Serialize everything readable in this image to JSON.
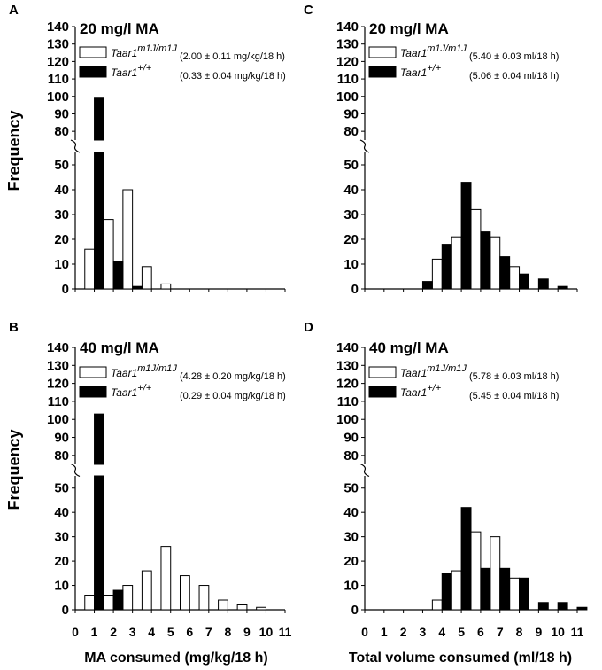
{
  "figure": {
    "y_axis_label": "Frequency",
    "x_label_left": "MA consumed (mg/kg/18 h)",
    "x_label_right": "Total volume consumed (ml/18 h)",
    "colors": {
      "ko": "#ffffff",
      "wt": "#000000",
      "axis": "#000000"
    }
  },
  "chart_data": [
    {
      "panel": "A",
      "type": "bar",
      "title": "20 mg/l MA",
      "xlabel": "MA consumed (mg/kg/18 h)",
      "ylabel": "Frequency",
      "xlim": [
        0,
        11
      ],
      "ylim": [
        0,
        140
      ],
      "y_break": [
        55,
        75
      ],
      "y_ticks": [
        0,
        10,
        20,
        30,
        40,
        50,
        80,
        90,
        100,
        110,
        120,
        130,
        140
      ],
      "legend": [
        {
          "gene": "Taar1",
          "sup": "m1J/m1J",
          "stat": "(2.00 ± 0.11 mg/kg/18 h)"
        },
        {
          "gene": "Taar1",
          "sup": "+/+",
          "stat": "(0.33 ± 0.04 mg/kg/18 h)"
        }
      ],
      "series": [
        {
          "name": "Taar1 m1J/m1J",
          "x": [
            0.75,
            1.75,
            2.75,
            3.75,
            4.75
          ],
          "values": [
            16,
            28,
            40,
            9,
            2
          ]
        },
        {
          "name": "Taar1 +/+",
          "x": [
            1.25,
            2.25,
            3.25
          ],
          "values": [
            99,
            11,
            1
          ]
        }
      ]
    },
    {
      "panel": "C",
      "type": "bar",
      "title": "20 mg/l MA",
      "xlabel": "Total volume consumed (ml/18 h)",
      "ylabel": "Frequency",
      "xlim": [
        0,
        11
      ],
      "ylim": [
        0,
        140
      ],
      "y_break": [
        55,
        75
      ],
      "y_ticks": [
        0,
        10,
        20,
        30,
        40,
        50,
        80,
        90,
        100,
        110,
        120,
        130,
        140
      ],
      "legend": [
        {
          "gene": "Taar1",
          "sup": "m1J/m1J",
          "stat": "(5.40 ± 0.03 ml/18 h)"
        },
        {
          "gene": "Taar1",
          "sup": "+/+",
          "stat": "(5.06 ± 0.04 ml/18 h)"
        }
      ],
      "series": [
        {
          "name": "Taar1 m1J/m1J",
          "x": [
            3.75,
            4.75,
            5.75,
            6.75,
            7.75
          ],
          "values": [
            12,
            21,
            32,
            21,
            9
          ]
        },
        {
          "name": "Taar1 +/+",
          "x": [
            3.25,
            4.25,
            5.25,
            6.25,
            7.25,
            8.25,
            9.25,
            10.25
          ],
          "values": [
            3,
            18,
            43,
            23,
            13,
            6,
            4,
            1
          ]
        }
      ]
    },
    {
      "panel": "B",
      "type": "bar",
      "title": "40 mg/l MA",
      "xlabel": "MA consumed (mg/kg/18 h)",
      "ylabel": "Frequency",
      "xlim": [
        0,
        11
      ],
      "ylim": [
        0,
        140
      ],
      "y_break": [
        55,
        75
      ],
      "y_ticks": [
        0,
        10,
        20,
        30,
        40,
        50,
        80,
        90,
        100,
        110,
        120,
        130,
        140
      ],
      "x_ticks": [
        "0",
        "1",
        "2",
        "3",
        "4",
        "5",
        "6",
        "7",
        "8",
        "9",
        "10",
        "11"
      ],
      "legend": [
        {
          "gene": "Taar1",
          "sup": "m1J/m1J",
          "stat": "(4.28 ± 0.20 mg/kg/18 h)"
        },
        {
          "gene": "Taar1",
          "sup": "+/+",
          "stat": "(0.29 ± 0.04 mg/kg/18 h)"
        }
      ],
      "series": [
        {
          "name": "Taar1 m1J/m1J",
          "x": [
            0.75,
            1.75,
            2.75,
            3.75,
            4.75,
            5.75,
            6.75,
            7.75,
            8.75,
            9.75
          ],
          "values": [
            6,
            6,
            10,
            16,
            26,
            14,
            10,
            4,
            2,
            1
          ]
        },
        {
          "name": "Taar1 +/+",
          "x": [
            1.25,
            2.25
          ],
          "values": [
            103,
            8
          ]
        }
      ]
    },
    {
      "panel": "D",
      "type": "bar",
      "title": "40 mg/l MA",
      "xlabel": "Total volume consumed (ml/18 h)",
      "ylabel": "Frequency",
      "xlim": [
        0,
        11
      ],
      "ylim": [
        0,
        140
      ],
      "y_break": [
        55,
        75
      ],
      "y_ticks": [
        0,
        10,
        20,
        30,
        40,
        50,
        80,
        90,
        100,
        110,
        120,
        130,
        140
      ],
      "x_ticks": [
        "0",
        "1",
        "2",
        "3",
        "4",
        "5",
        "6",
        "7",
        "8",
        "9",
        "10",
        "11"
      ],
      "legend": [
        {
          "gene": "Taar1",
          "sup": "m1J/m1J",
          "stat": "(5.78 ± 0.03 ml/18 h)"
        },
        {
          "gene": "Taar1",
          "sup": "+/+",
          "stat": "(5.45 ± 0.04 ml/18 h)"
        }
      ],
      "series": [
        {
          "name": "Taar1 m1J/m1J",
          "x": [
            3.75,
            4.75,
            5.75,
            6.75,
            7.75
          ],
          "values": [
            4,
            16,
            32,
            30,
            13
          ]
        },
        {
          "name": "Taar1 +/+",
          "x": [
            4.25,
            5.25,
            6.25,
            7.25,
            8.25,
            9.25,
            10.25,
            11.25
          ],
          "values": [
            15,
            42,
            17,
            17,
            13,
            3,
            3,
            1
          ]
        }
      ]
    }
  ]
}
